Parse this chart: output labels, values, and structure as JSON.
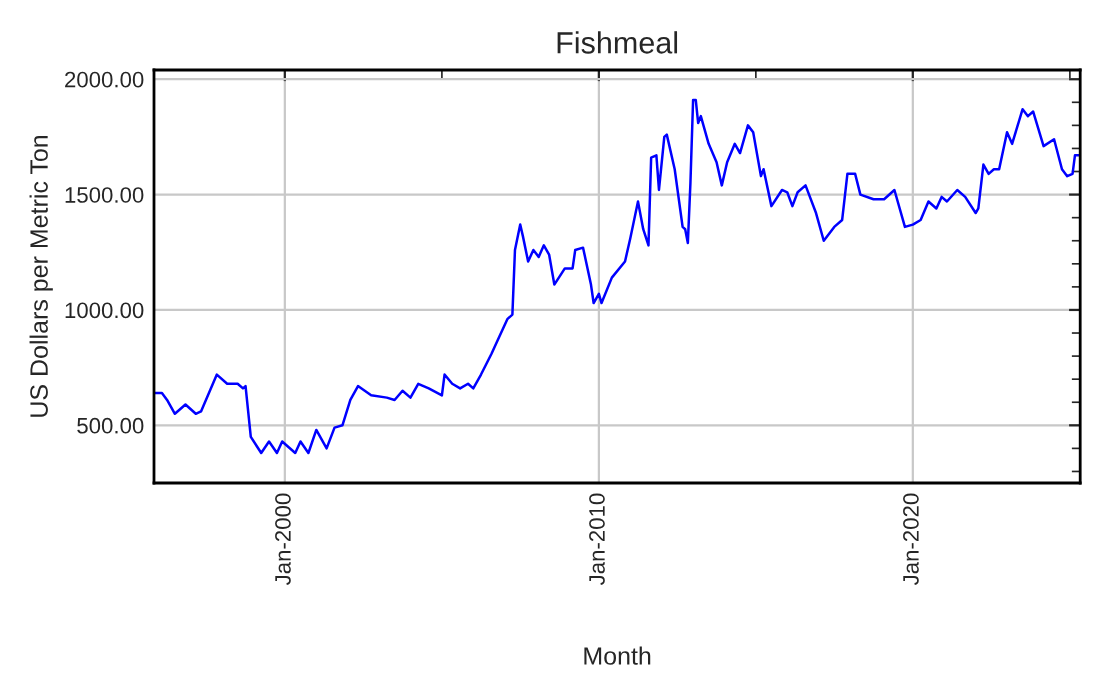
{
  "chart_data": {
    "type": "line",
    "title": "Fishmeal",
    "xlabel": "Month",
    "ylabel": "US Dollars per Metric Ton",
    "xlim": [
      "1995-11",
      "2025-05"
    ],
    "ylim": [
      250,
      2040
    ],
    "xticks": [
      {
        "value": "2000-01",
        "label": "Jan-2000"
      },
      {
        "value": "2005-01",
        "label": null
      },
      {
        "value": "2010-01",
        "label": "Jan-2010"
      },
      {
        "value": "2015-01",
        "label": null
      },
      {
        "value": "2020-01",
        "label": "Jan-2020"
      },
      {
        "value": "2025-01",
        "label": null
      }
    ],
    "yticks": [
      {
        "value": 300,
        "label": null
      },
      {
        "value": 400,
        "label": null
      },
      {
        "value": 500,
        "label": "500.00"
      },
      {
        "value": 600,
        "label": null
      },
      {
        "value": 700,
        "label": null
      },
      {
        "value": 800,
        "label": null
      },
      {
        "value": 900,
        "label": null
      },
      {
        "value": 1000,
        "label": "1000.00"
      },
      {
        "value": 1100,
        "label": null
      },
      {
        "value": 1200,
        "label": null
      },
      {
        "value": 1300,
        "label": null
      },
      {
        "value": 1400,
        "label": null
      },
      {
        "value": 1500,
        "label": "1500.00"
      },
      {
        "value": 1600,
        "label": null
      },
      {
        "value": 1700,
        "label": null
      },
      {
        "value": 1800,
        "label": null
      },
      {
        "value": 1900,
        "label": null
      },
      {
        "value": 2000,
        "label": "2000.00"
      }
    ],
    "grid": true,
    "marker": "none",
    "line_style": "solid",
    "series": [
      {
        "color": "#0000ff",
        "x": [
          "1995-11",
          "1996-02",
          "1996-04",
          "1996-07",
          "1996-11",
          "1997-03",
          "1997-05",
          "1997-11",
          "1998-03",
          "1998-07",
          "1998-09",
          "1998-10",
          "1998-12",
          "1999-04",
          "1999-07",
          "1999-10",
          "1999-12",
          "2000-05",
          "2000-07",
          "2000-10",
          "2001-01",
          "2001-05",
          "2001-08",
          "2001-11",
          "2002-02",
          "2002-05",
          "2002-10",
          "2003-04",
          "2003-07",
          "2003-10",
          "2004-01",
          "2004-04",
          "2004-08",
          "2005-01",
          "2005-02",
          "2005-05",
          "2005-08",
          "2005-11",
          "2006-01",
          "2006-04",
          "2006-08",
          "2006-10",
          "2007-02",
          "2007-04",
          "2007-05",
          "2007-07",
          "2007-08",
          "2007-10",
          "2007-12",
          "2008-02",
          "2008-04",
          "2008-06",
          "2008-08",
          "2008-12",
          "2009-03",
          "2009-04",
          "2009-07",
          "2009-10",
          "2009-11",
          "2010-01",
          "2010-02",
          "2010-06",
          "2010-11",
          "2011-01",
          "2011-04",
          "2011-06",
          "2011-08",
          "2011-09",
          "2011-11",
          "2011-12",
          "2012-02",
          "2012-03",
          "2012-06",
          "2012-09",
          "2012-10",
          "2012-11",
          "2012-12",
          "2013-01",
          "2013-02",
          "2013-03",
          "2013-04",
          "2013-07",
          "2013-10",
          "2013-12",
          "2014-02",
          "2014-05",
          "2014-07",
          "2014-10",
          "2014-12",
          "2015-03",
          "2015-04",
          "2015-07",
          "2015-11",
          "2016-01",
          "2016-03",
          "2016-05",
          "2016-08",
          "2016-12",
          "2017-03",
          "2017-07",
          "2017-10",
          "2017-12",
          "2018-03",
          "2018-05",
          "2018-10",
          "2019-02",
          "2019-06",
          "2019-10",
          "2020-01",
          "2020-04",
          "2020-07",
          "2020-10",
          "2020-12",
          "2021-02",
          "2021-06",
          "2021-09",
          "2022-01",
          "2022-02",
          "2022-04",
          "2022-06",
          "2022-08",
          "2022-10",
          "2023-01",
          "2023-03",
          "2023-07",
          "2023-09",
          "2023-11",
          "2024-03",
          "2024-07",
          "2024-10",
          "2024-12",
          "2025-02",
          "2025-03",
          "2025-05"
        ],
        "values": [
          640,
          640,
          610,
          550,
          590,
          550,
          560,
          720,
          680,
          680,
          660,
          670,
          450,
          380,
          430,
          380,
          430,
          380,
          430,
          380,
          480,
          400,
          490,
          500,
          610,
          670,
          630,
          620,
          610,
          650,
          620,
          680,
          660,
          630,
          720,
          680,
          660,
          680,
          660,
          720,
          810,
          860,
          960,
          980,
          1260,
          1370,
          1320,
          1210,
          1260,
          1230,
          1280,
          1240,
          1110,
          1180,
          1180,
          1260,
          1270,
          1110,
          1030,
          1070,
          1030,
          1140,
          1210,
          1310,
          1470,
          1350,
          1280,
          1660,
          1670,
          1520,
          1750,
          1760,
          1610,
          1360,
          1350,
          1290,
          1550,
          1910,
          1910,
          1810,
          1840,
          1720,
          1640,
          1540,
          1640,
          1720,
          1680,
          1800,
          1770,
          1580,
          1610,
          1450,
          1520,
          1510,
          1450,
          1510,
          1540,
          1420,
          1300,
          1360,
          1390,
          1590,
          1590,
          1500,
          1480,
          1480,
          1520,
          1360,
          1370,
          1390,
          1470,
          1440,
          1490,
          1470,
          1520,
          1490,
          1420,
          1440,
          1630,
          1590,
          1610,
          1610,
          1770,
          1720,
          1870,
          1840,
          1860,
          1710,
          1740,
          1610,
          1580,
          1590,
          1670,
          1670
        ]
      }
    ]
  }
}
